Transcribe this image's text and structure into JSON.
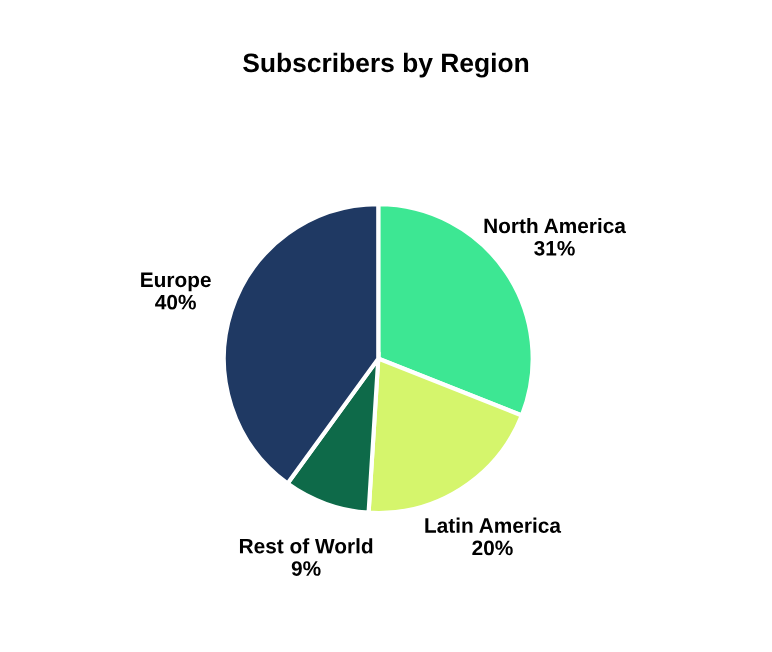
{
  "chart_data": {
    "type": "pie",
    "title": "Subscribers by Region",
    "categories": [
      "North America",
      "Latin America",
      "Rest of World",
      "Europe"
    ],
    "values": [
      31,
      20,
      9,
      40
    ],
    "value_labels": [
      "31%",
      "20%",
      "9%",
      "40%"
    ],
    "colors": [
      "#3de793",
      "#d5f56c",
      "#0e6a49",
      "#1f3963"
    ]
  }
}
